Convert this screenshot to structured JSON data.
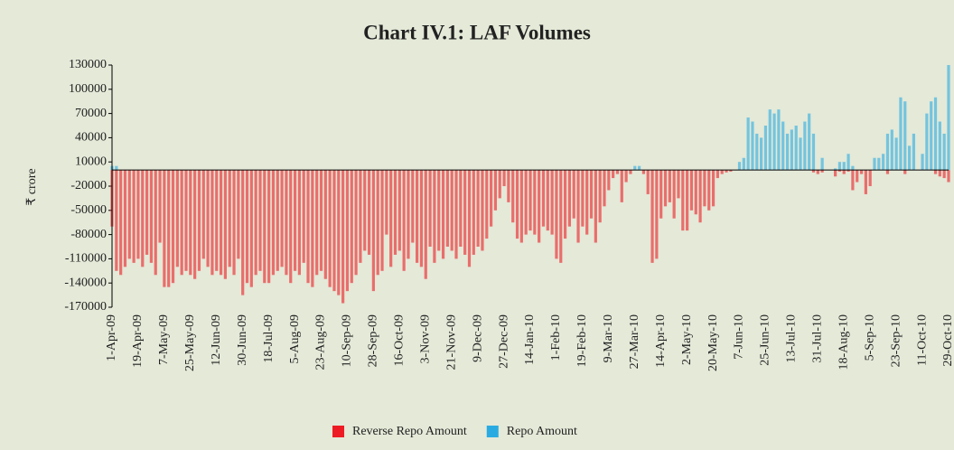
{
  "chart_data": {
    "type": "bar",
    "title": "Chart IV.1: LAF Volumes",
    "y_label": "₹ crore",
    "categories": [
      "1-Apr-09",
      null,
      null,
      null,
      null,
      null,
      "19-Apr-09",
      null,
      null,
      null,
      null,
      null,
      "7-May-09",
      null,
      null,
      null,
      null,
      null,
      "25-May-09",
      null,
      null,
      null,
      null,
      null,
      "12-Jun-09",
      null,
      null,
      null,
      null,
      null,
      "30-Jun-09",
      null,
      null,
      null,
      null,
      null,
      "18-Jul-09",
      null,
      null,
      null,
      null,
      null,
      "5-Aug-09",
      null,
      null,
      null,
      null,
      null,
      "23-Aug-09",
      null,
      null,
      null,
      null,
      null,
      "10-Sep-09",
      null,
      null,
      null,
      null,
      null,
      "28-Sep-09",
      null,
      null,
      null,
      null,
      null,
      "16-Oct-09",
      null,
      null,
      null,
      null,
      null,
      "3-Nov-09",
      null,
      null,
      null,
      null,
      null,
      "21-Nov-09",
      null,
      null,
      null,
      null,
      null,
      "9-Dec-09",
      null,
      null,
      null,
      null,
      null,
      "27-Dec-09",
      null,
      null,
      null,
      null,
      null,
      "14-Jan-10",
      null,
      null,
      null,
      null,
      null,
      "1-Feb-10",
      null,
      null,
      null,
      null,
      null,
      "19-Feb-10",
      null,
      null,
      null,
      null,
      null,
      "9-Mar-10",
      null,
      null,
      null,
      null,
      null,
      "27-Mar-10",
      null,
      null,
      null,
      null,
      null,
      "14-Apr-10",
      null,
      null,
      null,
      null,
      null,
      "2-May-10",
      null,
      null,
      null,
      null,
      null,
      "20-May-10",
      null,
      null,
      null,
      null,
      null,
      "7-Jun-10",
      null,
      null,
      null,
      null,
      null,
      "25-Jun-10",
      null,
      null,
      null,
      null,
      null,
      "13-Jul-10",
      null,
      null,
      null,
      null,
      null,
      "31-Jul-10",
      null,
      null,
      null,
      null,
      null,
      "18-Aug-10",
      null,
      null,
      null,
      null,
      null,
      "5-Sep-10",
      null,
      null,
      null,
      null,
      null,
      "23-Sep-10",
      null,
      null,
      null,
      null,
      null,
      "11-Oct-10",
      null,
      null,
      null,
      null,
      null,
      "29-Oct-10"
    ],
    "series": [
      {
        "name": "Reverse Repo Amount",
        "color": "#ed1c24",
        "values": [
          -70000,
          -125000,
          -130000,
          -120000,
          -110000,
          -115000,
          -110000,
          -120000,
          -105000,
          -115000,
          -130000,
          -90000,
          -145000,
          -145000,
          -140000,
          -120000,
          -130000,
          -125000,
          -130000,
          -135000,
          -125000,
          -110000,
          -120000,
          -130000,
          -125000,
          -130000,
          -135000,
          -120000,
          -130000,
          -110000,
          -155000,
          -140000,
          -145000,
          -130000,
          -125000,
          -140000,
          -140000,
          -130000,
          -125000,
          -120000,
          -130000,
          -140000,
          -125000,
          -130000,
          -115000,
          -140000,
          -145000,
          -130000,
          -125000,
          -135000,
          -145000,
          -150000,
          -155000,
          -165000,
          -150000,
          -140000,
          -130000,
          -115000,
          -100000,
          -105000,
          -150000,
          -130000,
          -125000,
          -80000,
          -120000,
          -105000,
          -100000,
          -125000,
          -110000,
          -90000,
          -115000,
          -120000,
          -135000,
          -95000,
          -115000,
          -100000,
          -110000,
          -95000,
          -100000,
          -110000,
          -95000,
          -105000,
          -120000,
          -105000,
          -95000,
          -100000,
          -85000,
          -70000,
          -50000,
          -35000,
          -20000,
          -40000,
          -65000,
          -85000,
          -90000,
          -80000,
          -75000,
          -80000,
          -90000,
          -70000,
          -75000,
          -80000,
          -110000,
          -115000,
          -85000,
          -70000,
          -60000,
          -90000,
          -70000,
          -80000,
          -60000,
          -90000,
          -65000,
          -45000,
          -25000,
          -10000,
          -5000,
          -40000,
          -15000,
          -5000,
          0,
          0,
          -5000,
          -30000,
          -115000,
          -110000,
          -60000,
          -45000,
          -40000,
          -60000,
          -35000,
          -75000,
          -75000,
          -50000,
          -55000,
          -65000,
          -45000,
          -50000,
          -45000,
          -10000,
          -5000,
          -3000,
          -2000,
          0,
          0,
          0,
          0,
          0,
          0,
          0,
          0,
          0,
          0,
          0,
          0,
          0,
          0,
          0,
          0,
          0,
          0,
          -3000,
          -5000,
          -3000,
          0,
          0,
          -8000,
          -2000,
          -5000,
          -2000,
          -25000,
          -15000,
          -5000,
          -30000,
          -20000,
          0,
          0,
          0,
          -5000,
          0,
          0,
          0,
          -5000,
          0,
          0,
          0,
          0,
          0,
          0,
          -5000,
          -8000,
          -10000,
          -15000
        ]
      },
      {
        "name": "Repo Amount",
        "color": "#29abe2",
        "values": [
          5000,
          5000,
          0,
          0,
          0,
          0,
          0,
          0,
          0,
          0,
          0,
          0,
          0,
          0,
          0,
          0,
          0,
          0,
          0,
          0,
          0,
          0,
          0,
          0,
          0,
          0,
          0,
          0,
          0,
          0,
          0,
          0,
          0,
          0,
          0,
          0,
          0,
          0,
          0,
          0,
          0,
          0,
          0,
          0,
          0,
          0,
          0,
          0,
          0,
          0,
          0,
          0,
          0,
          0,
          0,
          0,
          0,
          0,
          0,
          0,
          0,
          0,
          0,
          0,
          0,
          0,
          0,
          0,
          0,
          0,
          0,
          0,
          0,
          0,
          0,
          0,
          0,
          0,
          0,
          0,
          0,
          0,
          0,
          0,
          0,
          0,
          0,
          0,
          0,
          0,
          0,
          0,
          0,
          0,
          0,
          0,
          0,
          0,
          0,
          0,
          0,
          0,
          0,
          0,
          0,
          0,
          0,
          0,
          0,
          0,
          0,
          0,
          0,
          0,
          0,
          0,
          0,
          0,
          0,
          0,
          5000,
          5000,
          0,
          0,
          0,
          0,
          0,
          0,
          0,
          0,
          0,
          0,
          0,
          0,
          0,
          0,
          0,
          0,
          0,
          0,
          0,
          0,
          0,
          0,
          10000,
          15000,
          65000,
          60000,
          45000,
          40000,
          55000,
          75000,
          70000,
          75000,
          60000,
          45000,
          50000,
          55000,
          40000,
          60000,
          70000,
          45000,
          0,
          15000,
          0,
          0,
          2000,
          10000,
          10000,
          20000,
          5000,
          0,
          0,
          0,
          0,
          15000,
          15000,
          20000,
          45000,
          50000,
          40000,
          90000,
          85000,
          30000,
          45000,
          0,
          20000,
          70000,
          85000,
          90000,
          60000,
          45000,
          130000
        ]
      }
    ],
    "ylim": [
      -170000,
      130000
    ],
    "yticks": [
      130000,
      100000,
      70000,
      40000,
      10000,
      -20000,
      -50000,
      -80000,
      -110000,
      -140000,
      -170000
    ],
    "legend": "bottom"
  }
}
